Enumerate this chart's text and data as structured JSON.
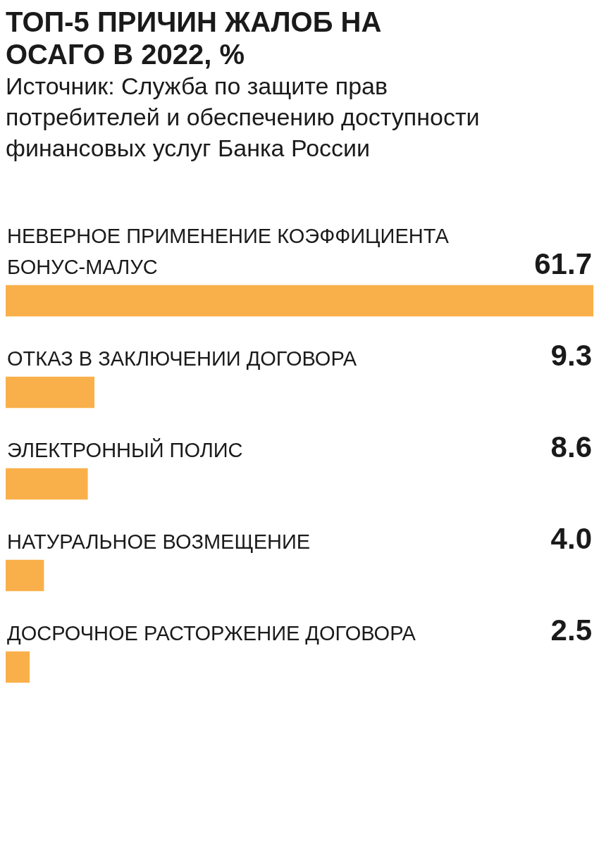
{
  "chart_data": {
    "type": "bar",
    "orientation": "horizontal",
    "title": "ТОП-5 ПРИЧИН ЖАЛОБ НА ОСАГО В 2022, %",
    "annotations": [
      "Источник: Служба по защите прав потребителей и обеспечению доступности финансовых услуг Банка России"
    ],
    "categories": [
      "НЕВЕРНОЕ ПРИМЕНЕНИЕ КОЭФФИЦИЕНТА БОНУС-МАЛУС",
      "ОТКАЗ В ЗАКЛЮЧЕНИИ ДОГОВОРА",
      "ЭЛЕКТРОННЫЙ ПОЛИС",
      "НАТУРАЛЬНОЕ ВОЗМЕЩЕНИЕ",
      "ДОСРОЧНОЕ РАСТОРЖЕНИЕ ДОГОВОРА"
    ],
    "values": [
      61.7,
      9.3,
      8.6,
      4.0,
      2.5
    ],
    "value_labels": [
      "61.7",
      "9.3",
      "8.6",
      "4.0",
      "2.5"
    ],
    "color": "#f9b04a"
  }
}
